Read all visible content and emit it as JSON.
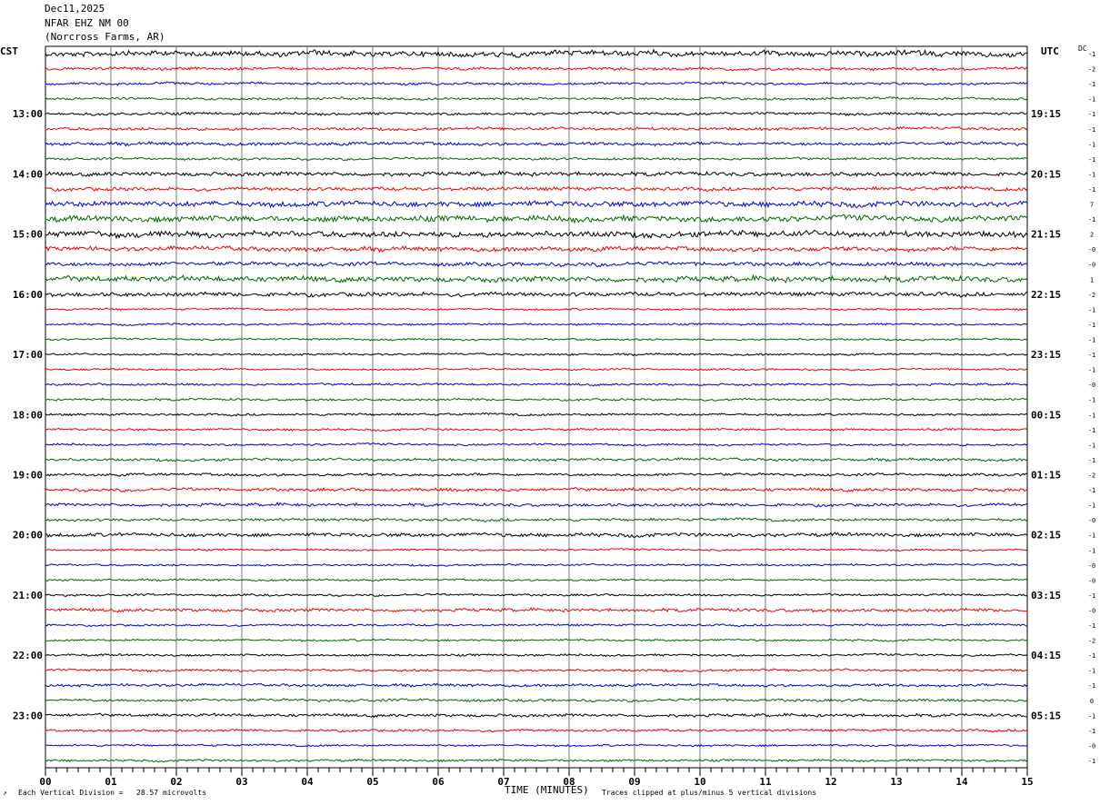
{
  "header": {
    "date": "Dec11,2025",
    "station": "NFAR EHZ NM 00",
    "location": "(Norcross Farms, AR)"
  },
  "left_zone": "CST",
  "right_zone": "UTC",
  "dc_label": "DC",
  "footer": {
    "scale": "Each Vertical Division =   28.57 microvolts",
    "xlabel": "TIME (MINUTES)",
    "clip": "Traces clipped at plus/minus 5 vertical divisions"
  },
  "chart_data": {
    "type": "line",
    "title": "Dec11,2025 NFAR EHZ NM 00 (Norcross Farms, AR)",
    "xlabel": "TIME (MINUTES)",
    "xlim": [
      0,
      15
    ],
    "x_ticks": [
      "00",
      "01",
      "02",
      "03",
      "04",
      "05",
      "06",
      "07",
      "08",
      "09",
      "10",
      "11",
      "12",
      "13",
      "14",
      "15"
    ],
    "trace_minutes": 15,
    "trace_colors": [
      "#000000",
      "#ee0000",
      "#0000cc",
      "#006600"
    ],
    "left_hour_labels": [
      "13:00",
      "14:00",
      "15:00",
      "16:00",
      "17:00",
      "18:00",
      "19:00",
      "20:00",
      "21:00",
      "22:00",
      "23:00"
    ],
    "right_hour_labels": [
      "19:15",
      "20:15",
      "21:15",
      "22:15",
      "23:15",
      "00:15",
      "01:15",
      "02:15",
      "03:15",
      "04:15",
      "05:15"
    ],
    "dc_offsets": [
      "-1",
      "-2",
      "-1",
      "-1",
      "-1",
      "-1",
      "-1",
      "-1",
      "-1",
      "-1",
      "7",
      "-1",
      "2",
      "-0",
      "-0",
      "1",
      "-2",
      "-1",
      "-1",
      "-1",
      "-1",
      "-1",
      "-0",
      "-1",
      "-1",
      "-1",
      "-1",
      "-1",
      "-2",
      "-1",
      "-1",
      "-0",
      "-1",
      "-1",
      "-0",
      "-0",
      "-1",
      "-0",
      "-1",
      "-2",
      "-1",
      "-1",
      "-1",
      "0",
      "-1",
      "-1",
      "-0",
      "-1"
    ],
    "trace_activity": [
      2.2,
      1.2,
      1.0,
      1.0,
      1.1,
      1.2,
      1.3,
      1.0,
      1.6,
      1.4,
      2.2,
      2.4,
      2.4,
      1.8,
      1.6,
      2.2,
      1.6,
      0.8,
      0.8,
      0.8,
      0.8,
      0.8,
      0.9,
      0.9,
      0.9,
      0.9,
      0.9,
      1.1,
      1.1,
      1.3,
      1.2,
      1.1,
      1.5,
      0.8,
      0.8,
      0.8,
      0.9,
      1.3,
      0.8,
      0.8,
      0.9,
      1.0,
      1.1,
      1.1,
      1.2,
      1.0,
      0.8,
      0.9
    ],
    "scale_microvolts_per_division": 28.57,
    "clip_divisions": 5
  }
}
